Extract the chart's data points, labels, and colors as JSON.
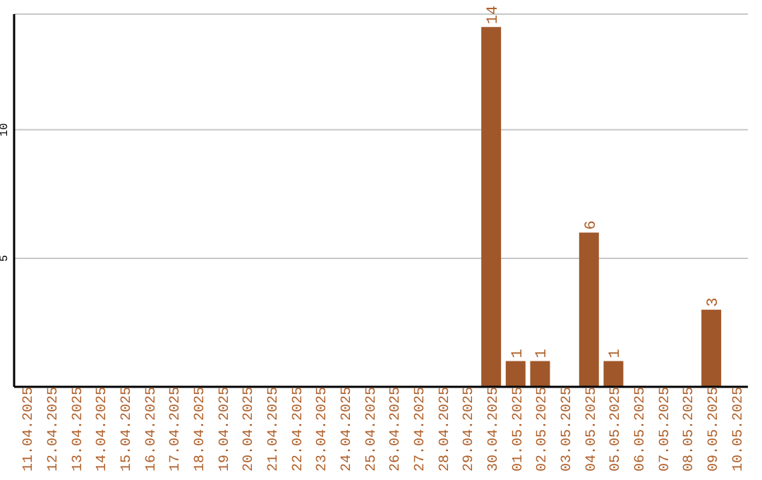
{
  "chart_data": {
    "type": "bar",
    "categories": [
      "11.04.2025",
      "12.04.2025",
      "13.04.2025",
      "14.04.2025",
      "15.04.2025",
      "16.04.2025",
      "17.04.2025",
      "18.04.2025",
      "19.04.2025",
      "20.04.2025",
      "21.04.2025",
      "22.04.2025",
      "23.04.2025",
      "24.04.2025",
      "25.04.2025",
      "26.04.2025",
      "27.04.2025",
      "28.04.2025",
      "29.04.2025",
      "30.04.2025",
      "01.05.2025",
      "02.05.2025",
      "03.05.2025",
      "04.05.2025",
      "05.05.2025",
      "06.05.2025",
      "07.05.2025",
      "08.05.2025",
      "09.05.2025",
      "10.05.2025"
    ],
    "values": [
      0,
      0,
      0,
      0,
      0,
      0,
      0,
      0,
      0,
      0,
      0,
      0,
      0,
      0,
      0,
      0,
      0,
      0,
      0,
      14,
      1,
      1,
      0,
      6,
      1,
      0,
      0,
      0,
      3,
      0
    ],
    "value_labels": [
      null,
      null,
      null,
      null,
      null,
      null,
      null,
      null,
      null,
      null,
      null,
      null,
      null,
      null,
      null,
      null,
      null,
      null,
      null,
      "14",
      "1",
      "1",
      null,
      "6",
      "1",
      null,
      null,
      null,
      "3",
      null
    ],
    "color": "#a0572a",
    "ylim": [
      0,
      14.5
    ],
    "yticks": [
      5,
      10
    ],
    "grid": "y"
  }
}
